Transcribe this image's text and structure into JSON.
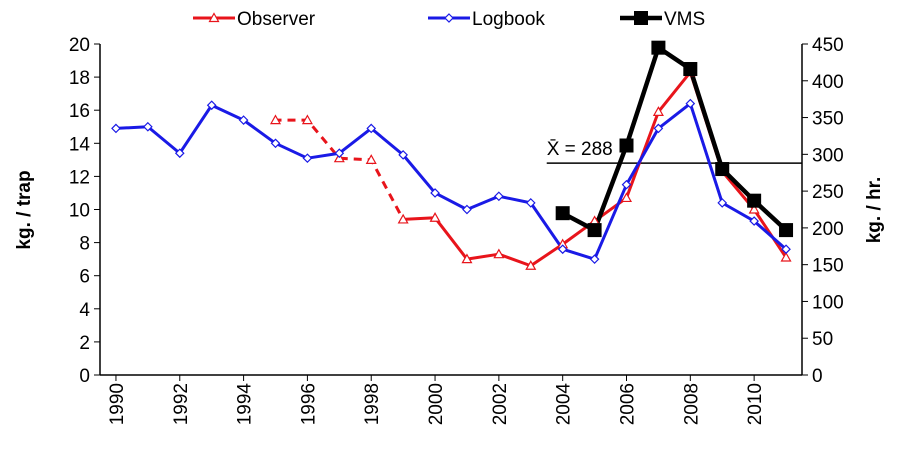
{
  "chart_data": {
    "type": "line",
    "x": [
      1990,
      1991,
      1992,
      1993,
      1994,
      1995,
      1996,
      1997,
      1998,
      1999,
      2000,
      2001,
      2002,
      2003,
      2004,
      2005,
      2006,
      2007,
      2008,
      2009,
      2010,
      2011
    ],
    "xlim": [
      1989.5,
      2011.5
    ],
    "xticks": [
      1990,
      1992,
      1994,
      1996,
      1998,
      2000,
      2002,
      2004,
      2006,
      2008,
      2010
    ],
    "ylabel": "kg. / trap",
    "ylim": [
      0,
      20
    ],
    "yticks": [
      0,
      2,
      4,
      6,
      8,
      10,
      12,
      14,
      16,
      18,
      20
    ],
    "y2label": "kg. / hr.",
    "y2lim": [
      0,
      450
    ],
    "y2ticks": [
      0,
      50,
      100,
      150,
      200,
      250,
      300,
      350,
      400,
      450
    ],
    "series": [
      {
        "name": "Observer",
        "color": "#e8141b",
        "marker": "triangle",
        "dashed_x": [
          1995,
          1999
        ],
        "values": [
          null,
          null,
          null,
          null,
          null,
          15.4,
          15.4,
          13.1,
          13.0,
          9.4,
          9.5,
          7.0,
          7.3,
          6.6,
          7.9,
          9.3,
          10.7,
          15.9,
          18.3,
          12.3,
          10.0,
          7.1
        ]
      },
      {
        "name": "Logbook",
        "color": "#1a1ae6",
        "marker": "diamond",
        "values": [
          14.9,
          15.0,
          13.4,
          16.3,
          15.4,
          14.0,
          13.1,
          13.4,
          14.9,
          13.3,
          11.0,
          10.0,
          10.8,
          10.4,
          7.6,
          7.0,
          11.5,
          14.9,
          16.4,
          10.4,
          9.3,
          7.6
        ]
      },
      {
        "name": "VMS",
        "color": "#000000",
        "marker": "square",
        "axis": "y2",
        "values": [
          null,
          null,
          null,
          null,
          null,
          null,
          null,
          null,
          null,
          null,
          null,
          null,
          null,
          null,
          220,
          197,
          312,
          445,
          416,
          280,
          237,
          197
        ]
      }
    ],
    "mean_line": {
      "value": 288,
      "label": "X̄ = 288",
      "from": 2003.5,
      "axis": "y2"
    }
  }
}
